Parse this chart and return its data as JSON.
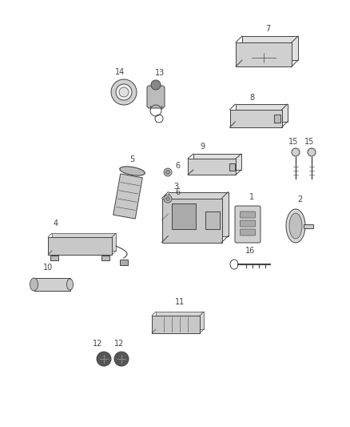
{
  "bg_color": "#ffffff",
  "line_color": "#444444",
  "figsize": [
    4.38,
    5.33
  ],
  "dpi": 100,
  "label_fs": 7,
  "lw": 0.7
}
